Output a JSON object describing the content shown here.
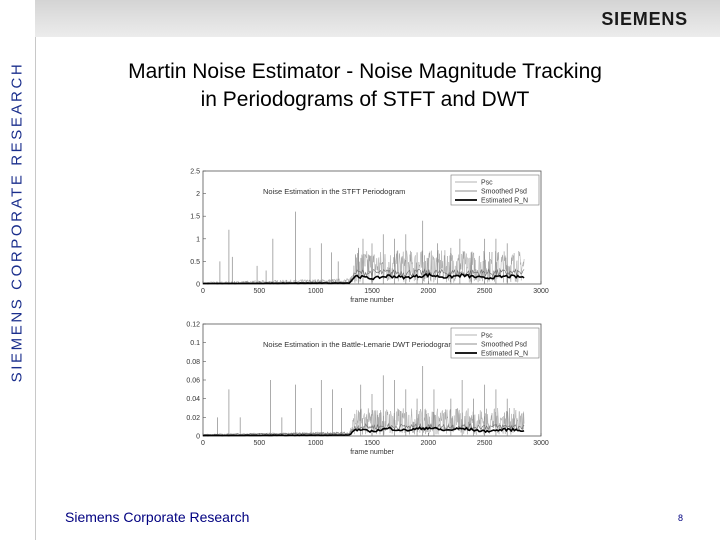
{
  "sidebar": {
    "label": "SIEMENS CORPORATE RESEARCH"
  },
  "header": {
    "logo": "SIEMENS"
  },
  "slide": {
    "title_line1": "Martin Noise Estimator - Noise Magnitude Tracking",
    "title_line2": "in Periodograms of STFT and DWT",
    "footer": "Siemens Corporate Research",
    "page_number": "8"
  },
  "colors": {
    "sidebar_text": "#1a2e8c",
    "footer_text": "#000080",
    "series_raw": "#9a9a9a",
    "series_est": "#000000"
  },
  "chart_data": [
    {
      "type": "line",
      "title": "Noise Estimation in the STFT Periodogram",
      "xlabel": "frame number",
      "ylabel": "",
      "xlim": [
        0,
        3000
      ],
      "ylim": [
        0,
        2.5
      ],
      "xticks": [
        "0",
        "500",
        "1000",
        "1500",
        "2000",
        "2500",
        "3000"
      ],
      "yticks": [
        "0",
        "0.5",
        "1",
        "1.5",
        "2",
        "2.5"
      ],
      "legend_position": "top-right",
      "series": [
        {
          "name": "Psc",
          "style": "raw",
          "x_range": [
            0,
            2850
          ],
          "base": [
            [
              0,
              0.02
            ],
            [
              1300,
              0.05
            ],
            [
              1350,
              0.3
            ],
            [
              2850,
              0.3
            ]
          ],
          "spikes": [
            [
              150,
              0.5
            ],
            [
              230,
              1.2
            ],
            [
              260,
              0.6
            ],
            [
              480,
              0.4
            ],
            [
              560,
              0.3
            ],
            [
              620,
              1.0
            ],
            [
              820,
              1.6
            ],
            [
              950,
              0.8
            ],
            [
              1050,
              0.9
            ],
            [
              1140,
              0.7
            ],
            [
              1200,
              0.5
            ],
            [
              1380,
              0.8
            ],
            [
              1420,
              1.0
            ],
            [
              1500,
              0.9
            ],
            [
              1600,
              1.1
            ],
            [
              1700,
              1.0
            ],
            [
              1800,
              1.1
            ],
            [
              1900,
              0.7
            ],
            [
              1950,
              1.4
            ],
            [
              2080,
              0.9
            ],
            [
              2200,
              0.8
            ],
            [
              2280,
              1.0
            ],
            [
              2380,
              0.7
            ],
            [
              2500,
              1.0
            ],
            [
              2600,
              1.0
            ],
            [
              2700,
              0.9
            ]
          ]
        },
        {
          "name": "Smoothed Psd",
          "style": "smooth",
          "points": [
            [
              0,
              0.02
            ],
            [
              1300,
              0.04
            ],
            [
              1350,
              0.25
            ],
            [
              2850,
              0.25
            ]
          ]
        },
        {
          "name": "Estimated R_N",
          "style": "estimate",
          "points": [
            [
              0,
              0.01
            ],
            [
              1300,
              0.02
            ],
            [
              1350,
              0.18
            ],
            [
              1500,
              0.12
            ],
            [
              1650,
              0.18
            ],
            [
              1800,
              0.14
            ],
            [
              2000,
              0.2
            ],
            [
              2150,
              0.15
            ],
            [
              2300,
              0.19
            ],
            [
              2500,
              0.13
            ],
            [
              2700,
              0.17
            ],
            [
              2850,
              0.15
            ]
          ]
        }
      ]
    },
    {
      "type": "line",
      "title": "Noise Estimation in the Battle-Lemarie DWT Periodogram",
      "xlabel": "frame number",
      "ylabel": "",
      "xlim": [
        0,
        3000
      ],
      "ylim": [
        0,
        0.12
      ],
      "xticks": [
        "0",
        "500",
        "1000",
        "1500",
        "2000",
        "2500",
        "3000"
      ],
      "yticks": [
        "0",
        "0.02",
        "0.04",
        "0.06",
        "0.08",
        "0.1",
        "0.12"
      ],
      "legend_position": "top-right",
      "series": [
        {
          "name": "Psc",
          "style": "raw",
          "x_range": [
            0,
            2850
          ],
          "base": [
            [
              0,
              0.001
            ],
            [
              1300,
              0.002
            ],
            [
              1350,
              0.012
            ],
            [
              2850,
              0.012
            ]
          ],
          "spikes": [
            [
              130,
              0.02
            ],
            [
              230,
              0.05
            ],
            [
              330,
              0.02
            ],
            [
              600,
              0.06
            ],
            [
              700,
              0.02
            ],
            [
              820,
              0.055
            ],
            [
              960,
              0.03
            ],
            [
              1050,
              0.06
            ],
            [
              1150,
              0.05
            ],
            [
              1230,
              0.03
            ],
            [
              1400,
              0.055
            ],
            [
              1500,
              0.045
            ],
            [
              1600,
              0.065
            ],
            [
              1700,
              0.06
            ],
            [
              1800,
              0.05
            ],
            [
              1900,
              0.04
            ],
            [
              1950,
              0.075
            ],
            [
              2050,
              0.05
            ],
            [
              2200,
              0.04
            ],
            [
              2300,
              0.06
            ],
            [
              2400,
              0.04
            ],
            [
              2500,
              0.055
            ],
            [
              2600,
              0.05
            ],
            [
              2700,
              0.04
            ]
          ]
        },
        {
          "name": "Smoothed Psd",
          "style": "smooth",
          "points": [
            [
              0,
              0.0015
            ],
            [
              1300,
              0.003
            ],
            [
              1350,
              0.01
            ],
            [
              2850,
              0.01
            ]
          ]
        },
        {
          "name": "Estimated R_N",
          "style": "estimate",
          "points": [
            [
              0,
              0.0005
            ],
            [
              1300,
              0.001
            ],
            [
              1350,
              0.007
            ],
            [
              1500,
              0.005
            ],
            [
              1650,
              0.008
            ],
            [
              1800,
              0.006
            ],
            [
              2000,
              0.009
            ],
            [
              2150,
              0.006
            ],
            [
              2300,
              0.008
            ],
            [
              2500,
              0.005
            ],
            [
              2700,
              0.007
            ],
            [
              2850,
              0.006
            ]
          ]
        }
      ]
    }
  ]
}
